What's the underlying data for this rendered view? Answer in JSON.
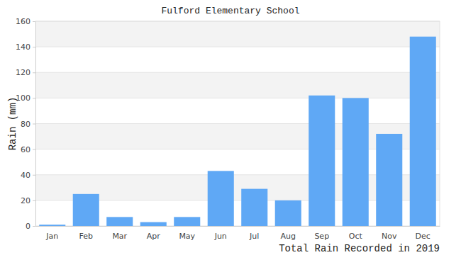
{
  "chart_data": {
    "type": "bar",
    "title": "Fulford Elementary School",
    "y_label": "Rain (mm)",
    "x_label": "Total Rain Recorded in 2019",
    "categories": [
      "Jan",
      "Feb",
      "Mar",
      "Apr",
      "May",
      "Jun",
      "Jul",
      "Aug",
      "Sep",
      "Oct",
      "Nov",
      "Dec"
    ],
    "values": [
      1,
      25,
      7,
      3,
      7,
      43,
      29,
      20,
      102,
      100,
      72,
      148
    ],
    "color": "#5fa8f5",
    "ylim": [
      0,
      160
    ],
    "yticks": [
      0,
      20,
      40,
      60,
      80,
      100,
      120,
      140,
      160
    ],
    "grid": true
  }
}
